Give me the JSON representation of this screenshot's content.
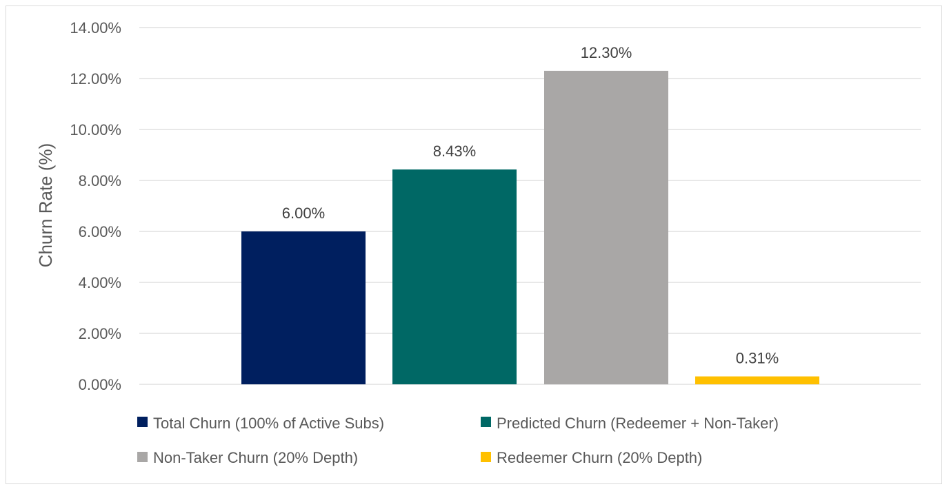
{
  "chart_data": {
    "type": "bar",
    "title": "",
    "xlabel": "",
    "ylabel": "Churn Rate (%)",
    "ylim": [
      0,
      14
    ],
    "y_ticks": [
      0,
      2,
      4,
      6,
      8,
      10,
      12,
      14
    ],
    "y_tick_labels": [
      "0.00%",
      "2.00%",
      "4.00%",
      "6.00%",
      "8.00%",
      "10.00%",
      "12.00%",
      "14.00%"
    ],
    "grid": true,
    "legend_position": "bottom",
    "series": [
      {
        "name": "Total Churn (100% of Active Subs)",
        "values": [
          6.0
        ],
        "data_label": "6.00%",
        "color": "#001f5f"
      },
      {
        "name": "Predicted Churn (Redeemer + Non-Taker)",
        "values": [
          8.43
        ],
        "data_label": "8.43%",
        "color": "#006865"
      },
      {
        "name": "Non-Taker Churn (20% Depth)",
        "values": [
          12.3
        ],
        "data_label": "12.30%",
        "color": "#a9a7a6"
      },
      {
        "name": "Redeemer Churn (20% Depth)",
        "values": [
          0.31
        ],
        "data_label": "0.31%",
        "color": "#ffc000"
      }
    ]
  }
}
